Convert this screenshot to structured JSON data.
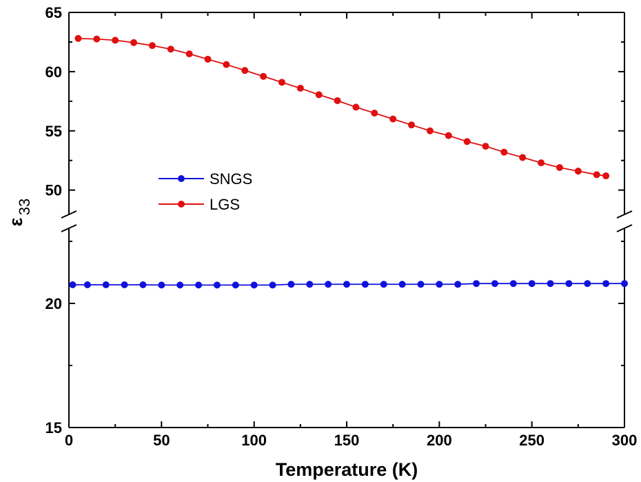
{
  "chart_data": {
    "type": "scatter",
    "xlabel": "Temperature (K)",
    "ylabel_main": "ε",
    "ylabel_sub": "33",
    "xlim": [
      0,
      300
    ],
    "x_ticks": [
      "0",
      "50",
      "100",
      "150",
      "200",
      "250",
      "300"
    ],
    "y_break": true,
    "y_lower_segment": {
      "range": [
        15,
        23
      ],
      "ticks": [
        "15",
        "20"
      ]
    },
    "y_upper_segment": {
      "range": [
        48,
        65
      ],
      "ticks": [
        "50",
        "55",
        "60",
        "65"
      ]
    },
    "legend_position": "center-left",
    "series": [
      {
        "name": "SNGS",
        "color": "#1111dd",
        "marker": "circle-line",
        "x": [
          2,
          10,
          20,
          30,
          40,
          50,
          60,
          70,
          80,
          90,
          100,
          110,
          120,
          130,
          140,
          150,
          160,
          170,
          180,
          190,
          200,
          210,
          220,
          230,
          240,
          250,
          260,
          270,
          280,
          290,
          300
        ],
        "y": [
          20.75,
          20.75,
          20.75,
          20.75,
          20.75,
          20.74,
          20.74,
          20.74,
          20.74,
          20.74,
          20.74,
          20.74,
          20.77,
          20.77,
          20.77,
          20.77,
          20.77,
          20.77,
          20.77,
          20.77,
          20.77,
          20.77,
          20.8,
          20.8,
          20.8,
          20.8,
          20.8,
          20.8,
          20.8,
          20.8,
          20.8
        ]
      },
      {
        "name": "LGS",
        "color": "#e01010",
        "marker": "circle-line",
        "x": [
          5,
          15,
          25,
          35,
          45,
          55,
          65,
          75,
          85,
          95,
          105,
          115,
          125,
          135,
          145,
          155,
          165,
          175,
          185,
          195,
          205,
          215,
          225,
          235,
          245,
          255,
          265,
          275,
          285,
          290
        ],
        "y": [
          62.8,
          62.75,
          62.65,
          62.45,
          62.2,
          61.9,
          61.5,
          61.05,
          60.6,
          60.1,
          59.6,
          59.1,
          58.6,
          58.05,
          57.55,
          57.0,
          56.5,
          56.0,
          55.5,
          55.0,
          54.6,
          54.1,
          53.7,
          53.2,
          52.75,
          52.3,
          51.9,
          51.6,
          51.3,
          51.2
        ]
      }
    ]
  }
}
